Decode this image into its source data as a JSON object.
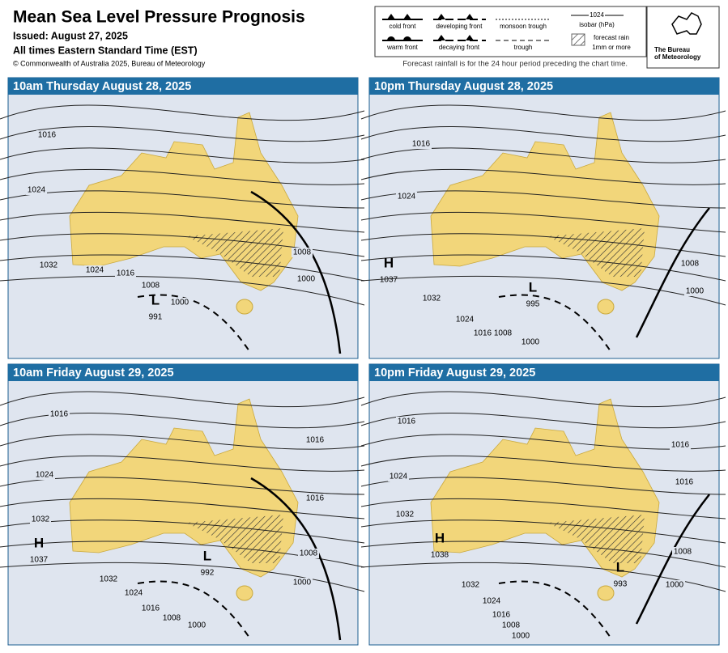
{
  "header": {
    "title": "Mean Sea Level Pressure Prognosis",
    "issued": "Issued: August 27, 2025",
    "times": "All times Eastern Standard Time (EST)",
    "copyright": "© Commonwealth of Australia 2025, Bureau of Meteorology",
    "note": "Forecast rainfall is for the 24 hour period preceding the chart time."
  },
  "legend": {
    "cold_front": "cold front",
    "warm_front": "warm front",
    "developing_front": "developing front",
    "decaying_front": "decaying front",
    "monsoon_trough": "monsoon trough",
    "trough": "trough",
    "isobar_value": "1024",
    "isobar": "isobar (hPa)",
    "rain": "forecast rain",
    "rain_amount": "1mm or more"
  },
  "logo": {
    "line1": "The Bureau",
    "line2": "of Meteorology"
  },
  "panels": [
    {
      "title": "10am Thursday August 28, 2025",
      "isobars": [
        1016,
        1024,
        1032,
        1024,
        1016,
        1008,
        1000,
        1008,
        1000
      ],
      "centers": [
        {
          "symbol": "L",
          "value": 991
        }
      ]
    },
    {
      "title": "10pm Thursday August 28, 2025",
      "isobars": [
        1016,
        1024,
        1032,
        1024,
        1016,
        1008,
        1000,
        1008,
        1000
      ],
      "centers": [
        {
          "symbol": "H",
          "value": 1037
        },
        {
          "symbol": "L",
          "value": 995
        }
      ]
    },
    {
      "title": "10am Friday August 29, 2025",
      "isobars": [
        1016,
        1016,
        1024,
        1016,
        1032,
        1008,
        1000,
        1032,
        1024,
        1016,
        1008,
        1000
      ],
      "centers": [
        {
          "symbol": "H",
          "value": 1037
        },
        {
          "symbol": "L",
          "value": 992
        }
      ]
    },
    {
      "title": "10pm Friday August 29, 2025",
      "isobars": [
        1016,
        1016,
        1024,
        1016,
        1032,
        1008,
        1000,
        1032,
        1024,
        1016,
        1008,
        1000
      ],
      "centers": [
        {
          "symbol": "H",
          "value": 1038
        },
        {
          "symbol": "L",
          "value": 993
        }
      ]
    }
  ]
}
